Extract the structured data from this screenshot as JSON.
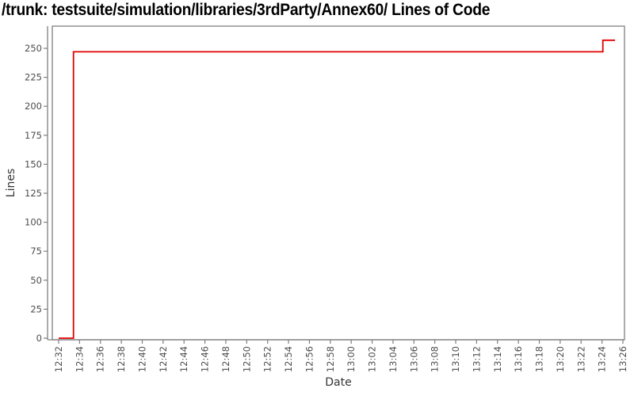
{
  "title": "/trunk: testsuite/simulation/libraries/3rdParty/Annex60/ Lines of Code",
  "chart_data": {
    "type": "line",
    "style": "step",
    "title": "/trunk: testsuite/simulation/libraries/3rdParty/Annex60/ Lines of Code",
    "xlabel": "Date",
    "ylabel": "Lines",
    "legend": false,
    "grid": false,
    "ylim": [
      0,
      269
    ],
    "y_tick_values": [
      0,
      25,
      50,
      75,
      100,
      125,
      150,
      175,
      200,
      225,
      250
    ],
    "x_tick_labels": [
      "12:32",
      "12:34",
      "12:36",
      "12:38",
      "12:40",
      "12:42",
      "12:44",
      "12:46",
      "12:48",
      "12:50",
      "12:52",
      "12:54",
      "12:56",
      "12:58",
      "13:00",
      "13:02",
      "13:04",
      "13:06",
      "13:08",
      "13:10",
      "13:12",
      "13:14",
      "13:16",
      "13:18",
      "13:20",
      "13:22",
      "13:24",
      "13:26"
    ],
    "series": [
      {
        "name": "lines-of-code",
        "color": "#e00000",
        "points": [
          {
            "x": "12:32:00",
            "y": 0
          },
          {
            "x": "12:33:25",
            "y": 0
          },
          {
            "x": "12:33:25",
            "y": 247
          },
          {
            "x": "13:24:05",
            "y": 247
          },
          {
            "x": "13:24:05",
            "y": 257
          },
          {
            "x": "13:25:15",
            "y": 257
          }
        ]
      }
    ]
  },
  "colors": {
    "line": "#e00000",
    "axis": "#7f7f7f",
    "tick_label": "#4d4d4d",
    "axis_label": "#333333",
    "title": "#000000",
    "background": "#ffffff"
  }
}
